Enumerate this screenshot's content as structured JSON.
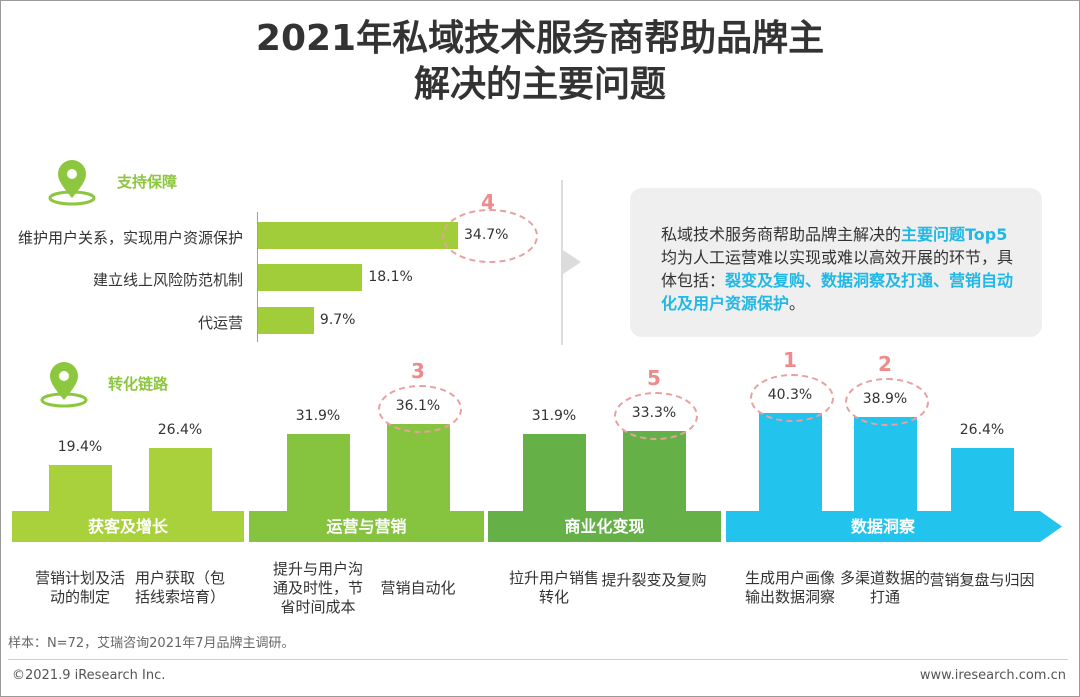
{
  "title_line1": "2021年私域技术服务商帮助品牌主",
  "title_line2": "解决的主要问题",
  "chart_data": [
    {
      "type": "bar",
      "orientation": "horizontal",
      "section": "支持保障",
      "categories": [
        "维护用户关系，实现用户资源保护",
        "建立线上风险防范机制",
        "代运营"
      ],
      "values": [
        34.7,
        18.1,
        9.7
      ],
      "value_labels": [
        "34.7%",
        "18.1%",
        "9.7%"
      ],
      "rank_labels": [
        "4",
        "",
        ""
      ],
      "color": "#a2cd3a",
      "unit": "%"
    },
    {
      "type": "bar",
      "section": "转化链路",
      "categories": [
        "营销计划及活动的制定",
        "用户获取（包括线索培育）",
        "提升与用户沟通及时性，节省时间成本",
        "营销自动化",
        "拉升用户销售转化",
        "提升裂变及复购",
        "生成用户画像输出数据洞察",
        "多渠道数据的打通",
        "营销复盘与归因"
      ],
      "values": [
        19.4,
        26.4,
        31.9,
        36.1,
        31.9,
        33.3,
        40.3,
        38.9,
        26.4
      ],
      "value_labels": [
        "19.4%",
        "26.4%",
        "31.9%",
        "36.1%",
        "31.9%",
        "33.3%",
        "40.3%",
        "38.9%",
        "26.4%"
      ],
      "rank_labels": [
        "",
        "",
        "",
        "3",
        "",
        "5",
        "1",
        "2",
        ""
      ],
      "groups": [
        {
          "name": "获客及增长",
          "color": "#a9d13b"
        },
        {
          "name": "运营与营销",
          "color": "#86c440"
        },
        {
          "name": "商业化变现",
          "color": "#66b048"
        },
        {
          "name": "数据洞察",
          "color": "#22c4ee"
        }
      ],
      "group_index": [
        0,
        0,
        1,
        1,
        2,
        2,
        3,
        3,
        3
      ],
      "unit": "%"
    }
  ],
  "callout": {
    "part1": "私域技术服务商帮助品牌主解决的",
    "highlight1": "主要问题Top5",
    "part2": "均为人工运营难以实现或难以高效开展的环节，具体包括：",
    "highlight2": "裂变及复购、数据洞察及打通、营销自动化及用户资源保护",
    "part3": "。"
  },
  "footnote": "样本：N=72，艾瑞咨询2021年7月品牌主调研。",
  "copyright": "©2021.9 iResearch Inc.",
  "website": "www.iresearch.com.cn",
  "colors": {
    "accent_green": "#8dc63f",
    "highlight_blue": "#22b8e6",
    "rank_red": "#ef8a8a"
  }
}
